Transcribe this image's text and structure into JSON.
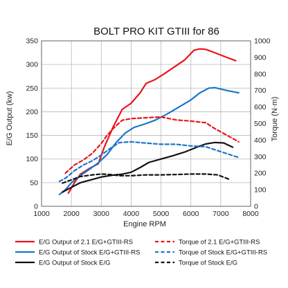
{
  "chart_data": {
    "type": "line",
    "title": "BOLT PRO KIT GTIII for 86",
    "xlabel": "Engine RPM",
    "ylabel_left": "E/G Output (kw)",
    "ylabel_right": "Torque (N·m)",
    "xlim": [
      1000,
      8000
    ],
    "ylim_left": [
      0,
      350
    ],
    "ylim_right": [
      0,
      1000
    ],
    "xticks": [
      "1000",
      "2000",
      "3000",
      "4000",
      "5000",
      "6000",
      "7000",
      "8000"
    ],
    "yticks_left": [
      "0",
      "50",
      "100",
      "150",
      "200",
      "250",
      "300",
      "350"
    ],
    "yticks_right": [
      "0",
      "100",
      "200",
      "300",
      "400",
      "500",
      "600",
      "700",
      "800",
      "900",
      "1000"
    ],
    "grid": true,
    "legend_position": "bottom",
    "series": [
      {
        "name": "E/G Output of 2.1 E/G+GTIII-RS",
        "axis": "left",
        "color": "#e8141c",
        "dash": false,
        "x": [
          1900,
          2100,
          2300,
          2600,
          2900,
          3100,
          3400,
          3700,
          4000,
          4300,
          4500,
          4800,
          5100,
          5500,
          5800,
          6100,
          6300,
          6500,
          6800,
          7200,
          7500
        ],
        "y": [
          28,
          50,
          68,
          80,
          90,
          125,
          168,
          205,
          218,
          240,
          260,
          268,
          280,
          297,
          310,
          330,
          333,
          332,
          325,
          315,
          308
        ]
      },
      {
        "name": "E/G Output of Stock E/G+GTIII-RS",
        "axis": "left",
        "color": "#1a75c9",
        "dash": false,
        "x": [
          1600,
          1800,
          2000,
          2300,
          2600,
          2900,
          3200,
          3500,
          3800,
          4100,
          4500,
          4800,
          5200,
          5600,
          6000,
          6300,
          6600,
          6800,
          7200,
          7600
        ],
        "y": [
          25,
          35,
          50,
          65,
          78,
          92,
          110,
          135,
          155,
          167,
          175,
          182,
          195,
          210,
          225,
          240,
          250,
          251,
          245,
          240
        ]
      },
      {
        "name": "E/G Output of Stock E/G",
        "axis": "left",
        "color": "#111111",
        "dash": false,
        "x": [
          1700,
          2000,
          2300,
          2600,
          3000,
          3400,
          3700,
          4000,
          4300,
          4600,
          5000,
          5400,
          5800,
          6200,
          6500,
          6800,
          7100,
          7400
        ],
        "y": [
          30,
          40,
          50,
          55,
          62,
          66,
          68,
          72,
          82,
          93,
          100,
          107,
          115,
          125,
          132,
          135,
          134,
          125
        ]
      },
      {
        "name": "Torque of 2.1 E/G+GTIII-RS",
        "axis": "right",
        "color": "#e8141c",
        "dash": true,
        "x": [
          1800,
          2100,
          2400,
          2700,
          3000,
          3200,
          3400,
          3700,
          4000,
          4500,
          5000,
          5500,
          6000,
          6500,
          6800,
          7200,
          7600
        ],
        "y": [
          200,
          250,
          280,
          320,
          380,
          430,
          470,
          520,
          530,
          535,
          540,
          522,
          515,
          505,
          470,
          430,
          390
        ]
      },
      {
        "name": "Torque of Stock E/G+GTIII-RS",
        "axis": "right",
        "color": "#1a75c9",
        "dash": true,
        "x": [
          1600,
          1800,
          2100,
          2400,
          2700,
          3000,
          3300,
          3600,
          4000,
          4500,
          5000,
          5500,
          6000,
          6500,
          7000,
          7600
        ],
        "y": [
          150,
          170,
          215,
          250,
          275,
          310,
          350,
          385,
          390,
          382,
          375,
          375,
          365,
          360,
          330,
          295
        ]
      },
      {
        "name": "Torque of Stock E/G",
        "axis": "right",
        "color": "#111111",
        "dash": true,
        "x": [
          1700,
          2000,
          2300,
          2700,
          3000,
          3300,
          3600,
          4000,
          4500,
          5000,
          5500,
          6000,
          6500,
          6900,
          7300
        ],
        "y": [
          140,
          160,
          180,
          190,
          195,
          192,
          185,
          185,
          190,
          190,
          192,
          195,
          195,
          190,
          162
        ]
      }
    ]
  }
}
